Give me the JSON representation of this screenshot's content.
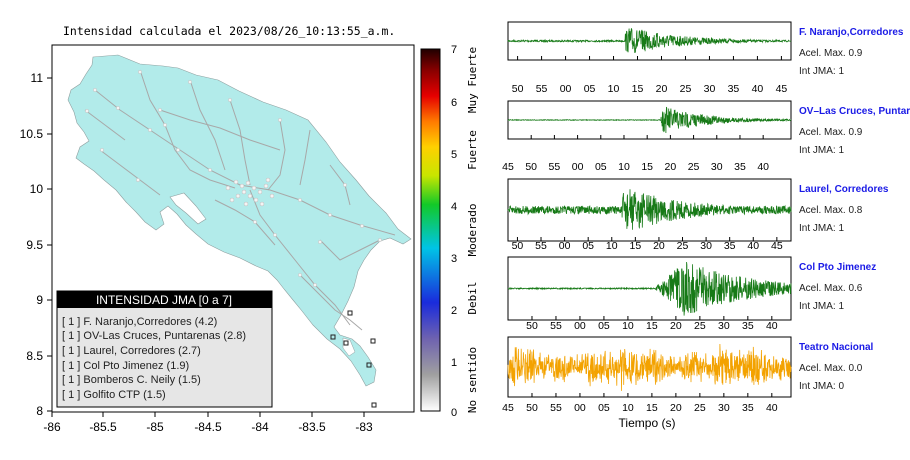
{
  "map": {
    "title": "Intensidad calculada el 2023/08/26_10:13:55_a.m.",
    "x_ticks": [
      "-86",
      "-85.5",
      "-85",
      "-84.5",
      "-84",
      "-83.5",
      "-83"
    ],
    "y_ticks": [
      "11",
      "10.5",
      "10",
      "9.5",
      "9",
      "8.5",
      "8"
    ],
    "legend": {
      "header": "INTENSIDAD JMA [0 a 7]",
      "items": [
        "[ 1 ]  F. Naranjo,Corredores (4.2)",
        "[ 1 ]  OV-Las Cruces, Puntarenas (2.8)",
        "[ 1 ]  Laurel, Corredores (2.7)",
        "[ 1 ]  Col Pto Jimenez (1.9)",
        "[ 1 ]  Bomberos C. Neily (1.5)",
        "[ 1 ]  Golfito CTP (1.5)"
      ]
    },
    "colorbar": {
      "ticks": [
        "7",
        "6",
        "5",
        "4",
        "3",
        "2",
        "1",
        "0"
      ],
      "labels": [
        "Muy Fuerte",
        "Fuerte",
        "Moderado",
        "Debil",
        "No sentido"
      ]
    }
  },
  "colors": {
    "land": "#b2ebea",
    "trace_green": "#177a17",
    "trace_orange": "#f3a200",
    "station_label": "#1a1ae6"
  },
  "chart_data": [
    {
      "type": "heatmap",
      "title": "Intensidad calculada el 2023/08/26_10:13:55_a.m.",
      "xlim": [
        -86,
        -82.6
      ],
      "ylim": [
        8,
        11.2
      ],
      "colorbar_range": [
        0,
        7
      ],
      "stations": [
        {
          "name": "F. Naranjo,Corredores",
          "jma": 1,
          "value": 4.2,
          "lon": -82.94,
          "lat": 8.53
        },
        {
          "name": "OV-Las Cruces, Puntarenas",
          "jma": 1,
          "value": 2.8,
          "lon": -83.14,
          "lat": 8.61
        },
        {
          "name": "Laurel, Corredores",
          "jma": 1,
          "value": 2.7,
          "lon": -82.95,
          "lat": 8.48
        },
        {
          "name": "Col Pto Jimenez",
          "jma": 1,
          "value": 1.9,
          "lon": -83.31,
          "lat": 8.53
        },
        {
          "name": "Bomberos C. Neily",
          "jma": 1,
          "value": 1.5,
          "lon": -82.94,
          "lat": 8.65
        },
        {
          "name": "Golfito CTP",
          "jma": 1,
          "value": 1.5,
          "lon": -83.16,
          "lat": 8.89
        }
      ]
    },
    {
      "type": "line",
      "xlabel": "Tiempo (s)",
      "traces": [
        {
          "name": "F. Naranjo,Corredores",
          "acel_label": "Acel. Max. 0.9",
          "int_label": "Int JMA: 1",
          "color": "#177a17",
          "onset": 12.4,
          "amplitude": 0.9,
          "noise": 0.05,
          "decay": 11,
          "start": 48,
          "end": 47,
          "ticks": [
            "50",
            "55",
            "00",
            "05",
            "10",
            "15",
            "20",
            "25",
            "30",
            "35",
            "40",
            "45"
          ]
        },
        {
          "name": "OV–Las Cruces, Puntar",
          "acel_label": "Acel. Max. 0.9",
          "int_label": "Int JMA: 1",
          "color": "#177a17",
          "onset": 18.0,
          "amplitude": 0.9,
          "noise": 0.02,
          "decay": 9,
          "start": 45,
          "end": 46,
          "ticks": [
            "50",
            "55",
            "00",
            "05",
            "10",
            "15",
            "20",
            "25",
            "30",
            "35",
            "40",
            "45"
          ]
        },
        {
          "name": "Laurel, Corredores",
          "acel_label": "Acel. Max. 0.8",
          "int_label": "Int JMA: 1",
          "color": "#177a17",
          "onset": 12.2,
          "amplitude": 0.85,
          "noise": 0.14,
          "decay": 13,
          "start": 48,
          "end": 48,
          "ticks": [
            "50",
            "55",
            "00",
            "05",
            "10",
            "15",
            "20",
            "25",
            "30",
            "35",
            "40",
            "45"
          ]
        },
        {
          "name": "Col Pto Jimenez",
          "acel_label": "Acel. Max. 0.6",
          "int_label": "Int JMA: 1",
          "color": "#177a17",
          "onset": 15.4,
          "amplitude": 0.85,
          "noise": 0.02,
          "decay": 30,
          "start": 45,
          "end": 44,
          "ticks": [
            "50",
            "55",
            "00",
            "05",
            "10",
            "15",
            "20",
            "25",
            "30",
            "35",
            "40"
          ]
        },
        {
          "name": "Teatro Nacional",
          "acel_label": "Acel. Max. 0.0",
          "int_label": "Int JMA: 0",
          "color": "#f3a200",
          "onset": 0,
          "amplitude": 0.9,
          "noise": 0.55,
          "decay": 0,
          "start": 45,
          "end": 44,
          "ticks": [
            "45",
            "50",
            "55",
            "00",
            "05",
            "10",
            "15",
            "20",
            "25",
            "30",
            "35",
            "40"
          ]
        }
      ]
    }
  ]
}
